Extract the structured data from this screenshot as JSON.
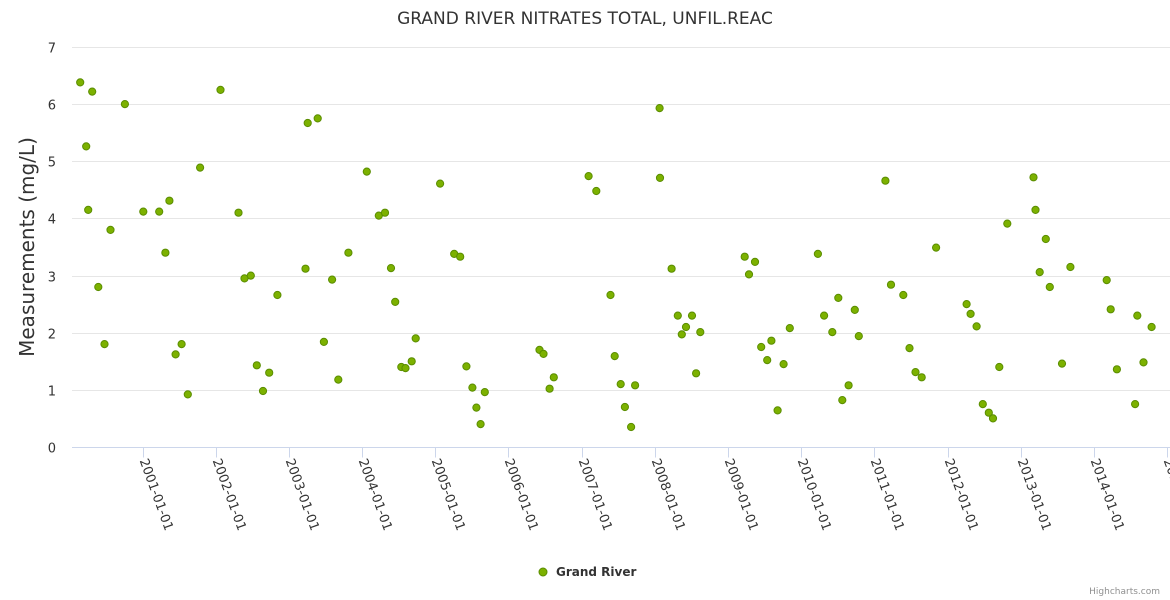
{
  "chart_data": {
    "type": "scatter",
    "title": "GRAND RIVER NITRATES TOTAL, UNFIL.REAC",
    "xlabel": "",
    "ylabel": "Measurements (mg/L)",
    "xlim": [
      "2000-01-15",
      "2015-01-15"
    ],
    "ylim": [
      0,
      7
    ],
    "y_ticks": [
      0,
      1,
      2,
      3,
      4,
      5,
      6,
      7
    ],
    "x_ticks": [
      "2001-01-01",
      "2002-01-01",
      "2003-01-01",
      "2004-01-01",
      "2005-01-01",
      "2006-01-01",
      "2007-01-01",
      "2008-01-01",
      "2009-01-01",
      "2010-01-01",
      "2011-01-01",
      "2012-01-01",
      "2013-01-01",
      "2014-01-01",
      "2015-01-01"
    ],
    "grid": true,
    "legend": {
      "position": "bottom-center"
    },
    "series": [
      {
        "name": "Grand River",
        "color": "#7cb100",
        "marker_border": "#5a8d00",
        "points": [
          [
            "2000-02-25",
            6.38
          ],
          [
            "2000-03-26",
            5.26
          ],
          [
            "2000-04-05",
            4.15
          ],
          [
            "2000-04-25",
            6.22
          ],
          [
            "2000-05-25",
            2.8
          ],
          [
            "2000-06-25",
            1.8
          ],
          [
            "2000-07-25",
            3.8
          ],
          [
            "2000-10-05",
            6.0
          ],
          [
            "2001-01-05",
            4.12
          ],
          [
            "2001-03-25",
            4.12
          ],
          [
            "2001-04-25",
            3.4
          ],
          [
            "2001-05-15",
            4.31
          ],
          [
            "2001-06-15",
            1.62
          ],
          [
            "2001-07-15",
            1.8
          ],
          [
            "2001-08-15",
            0.92
          ],
          [
            "2001-10-15",
            4.89
          ],
          [
            "2002-01-25",
            6.25
          ],
          [
            "2002-04-25",
            4.1
          ],
          [
            "2002-05-25",
            2.95
          ],
          [
            "2002-06-25",
            3.0
          ],
          [
            "2002-07-25",
            1.43
          ],
          [
            "2002-08-25",
            0.98
          ],
          [
            "2002-09-25",
            1.3
          ],
          [
            "2002-11-05",
            2.66
          ],
          [
            "2003-03-25",
            3.12
          ],
          [
            "2003-04-05",
            5.67
          ],
          [
            "2003-05-25",
            5.75
          ],
          [
            "2003-06-25",
            1.84
          ],
          [
            "2003-08-05",
            2.93
          ],
          [
            "2003-09-05",
            1.18
          ],
          [
            "2003-10-25",
            3.4
          ],
          [
            "2004-01-25",
            4.82
          ],
          [
            "2004-03-25",
            4.05
          ],
          [
            "2004-04-25",
            4.1
          ],
          [
            "2004-05-25",
            3.13
          ],
          [
            "2004-06-15",
            2.54
          ],
          [
            "2004-07-15",
            1.4
          ],
          [
            "2004-08-05",
            1.38
          ],
          [
            "2004-09-05",
            1.5
          ],
          [
            "2004-09-25",
            1.9
          ],
          [
            "2005-01-25",
            4.61
          ],
          [
            "2005-04-05",
            3.38
          ],
          [
            "2005-05-05",
            3.33
          ],
          [
            "2005-06-05",
            1.41
          ],
          [
            "2005-07-05",
            1.04
          ],
          [
            "2005-07-25",
            0.69
          ],
          [
            "2005-08-15",
            0.4
          ],
          [
            "2005-09-05",
            0.96
          ],
          [
            "2006-06-05",
            1.7
          ],
          [
            "2006-06-25",
            1.63
          ],
          [
            "2006-07-25",
            1.02
          ],
          [
            "2006-08-15",
            1.22
          ],
          [
            "2007-02-05",
            4.74
          ],
          [
            "2007-03-15",
            4.48
          ],
          [
            "2007-05-25",
            2.66
          ],
          [
            "2007-06-15",
            1.59
          ],
          [
            "2007-07-15",
            1.1
          ],
          [
            "2007-08-05",
            0.7
          ],
          [
            "2007-09-05",
            0.35
          ],
          [
            "2007-09-25",
            1.08
          ],
          [
            "2008-01-25",
            5.93
          ],
          [
            "2008-01-27",
            4.71
          ],
          [
            "2008-03-25",
            3.12
          ],
          [
            "2008-04-25",
            2.3
          ],
          [
            "2008-05-15",
            1.97
          ],
          [
            "2008-06-05",
            2.1
          ],
          [
            "2008-07-05",
            2.3
          ],
          [
            "2008-07-25",
            1.29
          ],
          [
            "2008-08-15",
            2.01
          ],
          [
            "2009-03-25",
            3.33
          ],
          [
            "2009-04-15",
            3.02
          ],
          [
            "2009-05-15",
            3.24
          ],
          [
            "2009-06-15",
            1.75
          ],
          [
            "2009-07-15",
            1.52
          ],
          [
            "2009-08-05",
            1.86
          ],
          [
            "2009-09-05",
            0.64
          ],
          [
            "2009-10-05",
            1.45
          ],
          [
            "2009-11-05",
            2.08
          ],
          [
            "2010-03-25",
            3.38
          ],
          [
            "2010-04-25",
            2.3
          ],
          [
            "2010-06-05",
            2.01
          ],
          [
            "2010-07-05",
            2.61
          ],
          [
            "2010-07-25",
            0.82
          ],
          [
            "2010-08-25",
            1.08
          ],
          [
            "2010-09-25",
            2.4
          ],
          [
            "2010-10-15",
            1.94
          ],
          [
            "2011-02-25",
            4.66
          ],
          [
            "2011-03-25",
            2.84
          ],
          [
            "2011-05-25",
            2.66
          ],
          [
            "2011-06-25",
            1.73
          ],
          [
            "2011-07-25",
            1.31
          ],
          [
            "2011-08-25",
            1.22
          ],
          [
            "2011-11-05",
            3.49
          ],
          [
            "2012-04-05",
            2.5
          ],
          [
            "2012-04-25",
            2.33
          ],
          [
            "2012-05-25",
            2.11
          ],
          [
            "2012-06-25",
            0.75
          ],
          [
            "2012-07-25",
            0.6
          ],
          [
            "2012-08-15",
            0.5
          ],
          [
            "2012-09-15",
            1.4
          ],
          [
            "2012-10-25",
            3.91
          ],
          [
            "2013-03-05",
            4.72
          ],
          [
            "2013-03-15",
            4.15
          ],
          [
            "2013-04-05",
            3.06
          ],
          [
            "2013-05-05",
            3.64
          ],
          [
            "2013-05-25",
            2.8
          ],
          [
            "2013-07-25",
            1.46
          ],
          [
            "2013-09-05",
            3.15
          ],
          [
            "2014-03-05",
            2.92
          ],
          [
            "2014-03-25",
            2.41
          ],
          [
            "2014-04-25",
            1.36
          ],
          [
            "2014-07-25",
            0.75
          ],
          [
            "2014-08-05",
            2.3
          ],
          [
            "2014-09-05",
            1.48
          ],
          [
            "2014-10-15",
            2.1
          ]
        ]
      }
    ],
    "credits": "Highcharts.com"
  }
}
